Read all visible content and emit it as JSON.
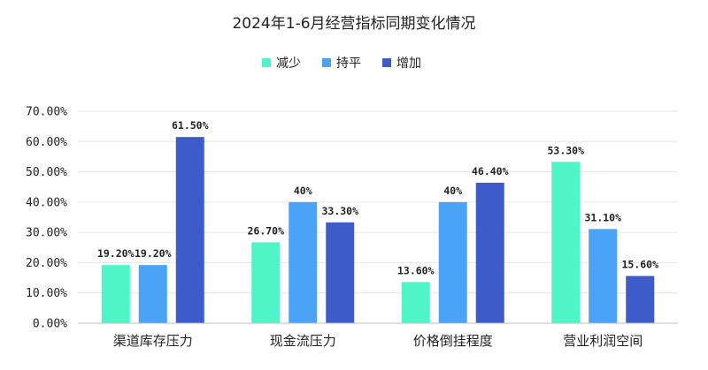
{
  "chart_data": {
    "type": "bar",
    "title": "2024年1-6月经营指标同期变化情况",
    "categories": [
      "渠道库存压力",
      "现金流压力",
      "价格倒挂程度",
      "营业利润空间"
    ],
    "series": [
      {
        "name": "减少",
        "color": "#4ff5c7",
        "values": [
          19.2,
          26.7,
          13.6,
          53.3
        ],
        "labels": [
          "19.20%",
          "26.70%",
          "13.60%",
          "53.30%"
        ]
      },
      {
        "name": "持平",
        "color": "#4aa3f7",
        "values": [
          19.2,
          40,
          40,
          31.1
        ],
        "labels": [
          "19.20%",
          "40%",
          "40%",
          "31.10%"
        ]
      },
      {
        "name": "增加",
        "color": "#3e5cc9",
        "values": [
          61.5,
          33.3,
          46.4,
          15.6
        ],
        "labels": [
          "61.50%",
          "33.30%",
          "46.40%",
          "15.60%"
        ]
      }
    ],
    "y_ticks": [
      "0.00%",
      "10.00%",
      "20.00%",
      "30.00%",
      "40.00%",
      "50.00%",
      "60.00%",
      "70.00%"
    ],
    "ylim": [
      0,
      70
    ],
    "grid": true,
    "legend_position": "top-center"
  }
}
